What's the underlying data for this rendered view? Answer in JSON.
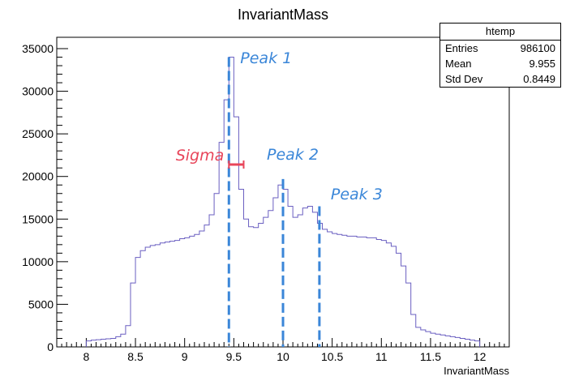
{
  "chart_data": {
    "type": "histogram",
    "title": "InvariantMass",
    "xlabel": "InvariantMass",
    "ylabel": "",
    "xlim": [
      7.7,
      12.3
    ],
    "ylim": [
      0,
      35000
    ],
    "x_ticks": [
      8,
      8.5,
      9,
      9.5,
      10,
      10.5,
      11,
      11.5,
      12
    ],
    "x_tick_labels": [
      "8",
      "8.5",
      "9",
      "9.5",
      "10",
      "10.5",
      "11",
      "11.5",
      "12"
    ],
    "y_ticks": [
      0,
      5000,
      10000,
      15000,
      20000,
      25000,
      30000,
      35000
    ],
    "y_tick_labels": [
      "0",
      "5000",
      "10000",
      "15000",
      "20000",
      "25000",
      "30000",
      "35000"
    ],
    "bin_width": 0.05,
    "bin_start": 8.0,
    "bin_contents": [
      700,
      800,
      850,
      900,
      950,
      1000,
      1200,
      1500,
      2500,
      7500,
      10500,
      11300,
      11700,
      11900,
      12000,
      12200,
      12300,
      12400,
      12500,
      12700,
      12800,
      13000,
      13200,
      13600,
      14300,
      15500,
      18000,
      24000,
      29000,
      34000,
      27000,
      18500,
      15000,
      14100,
      14000,
      14500,
      15200,
      16000,
      17500,
      19000,
      18500,
      16500,
      15200,
      15500,
      16300,
      16500,
      15800,
      14500,
      13800,
      13500,
      13300,
      13200,
      13100,
      13000,
      13000,
      12900,
      12900,
      12800,
      12800,
      12600,
      12500,
      12200,
      11800,
      11000,
      9500,
      7500,
      3800,
      2300,
      2000,
      1800,
      1600,
      1500,
      1400,
      1300,
      1200,
      1100,
      1000,
      900,
      800,
      700
    ],
    "line_color": "#6a5fc1",
    "markers": [
      {
        "label": "Peak 1",
        "x": 9.45,
        "color": "#3a86d8"
      },
      {
        "label": "Peak 2",
        "x": 10.0,
        "color": "#3a86d8"
      },
      {
        "label": "Peak 3",
        "x": 10.37,
        "color": "#3a86d8"
      }
    ],
    "sigma_annotation": {
      "label": "Sigma",
      "x_from": 9.45,
      "x_to": 9.6,
      "y": 21000,
      "color": "#e8455a"
    },
    "stats_box": {
      "title": "htemp",
      "rows": [
        {
          "label": "Entries",
          "value": "986100"
        },
        {
          "label": "Mean",
          "value": "9.955"
        },
        {
          "label": "Std Dev",
          "value": "0.8449"
        }
      ]
    }
  }
}
